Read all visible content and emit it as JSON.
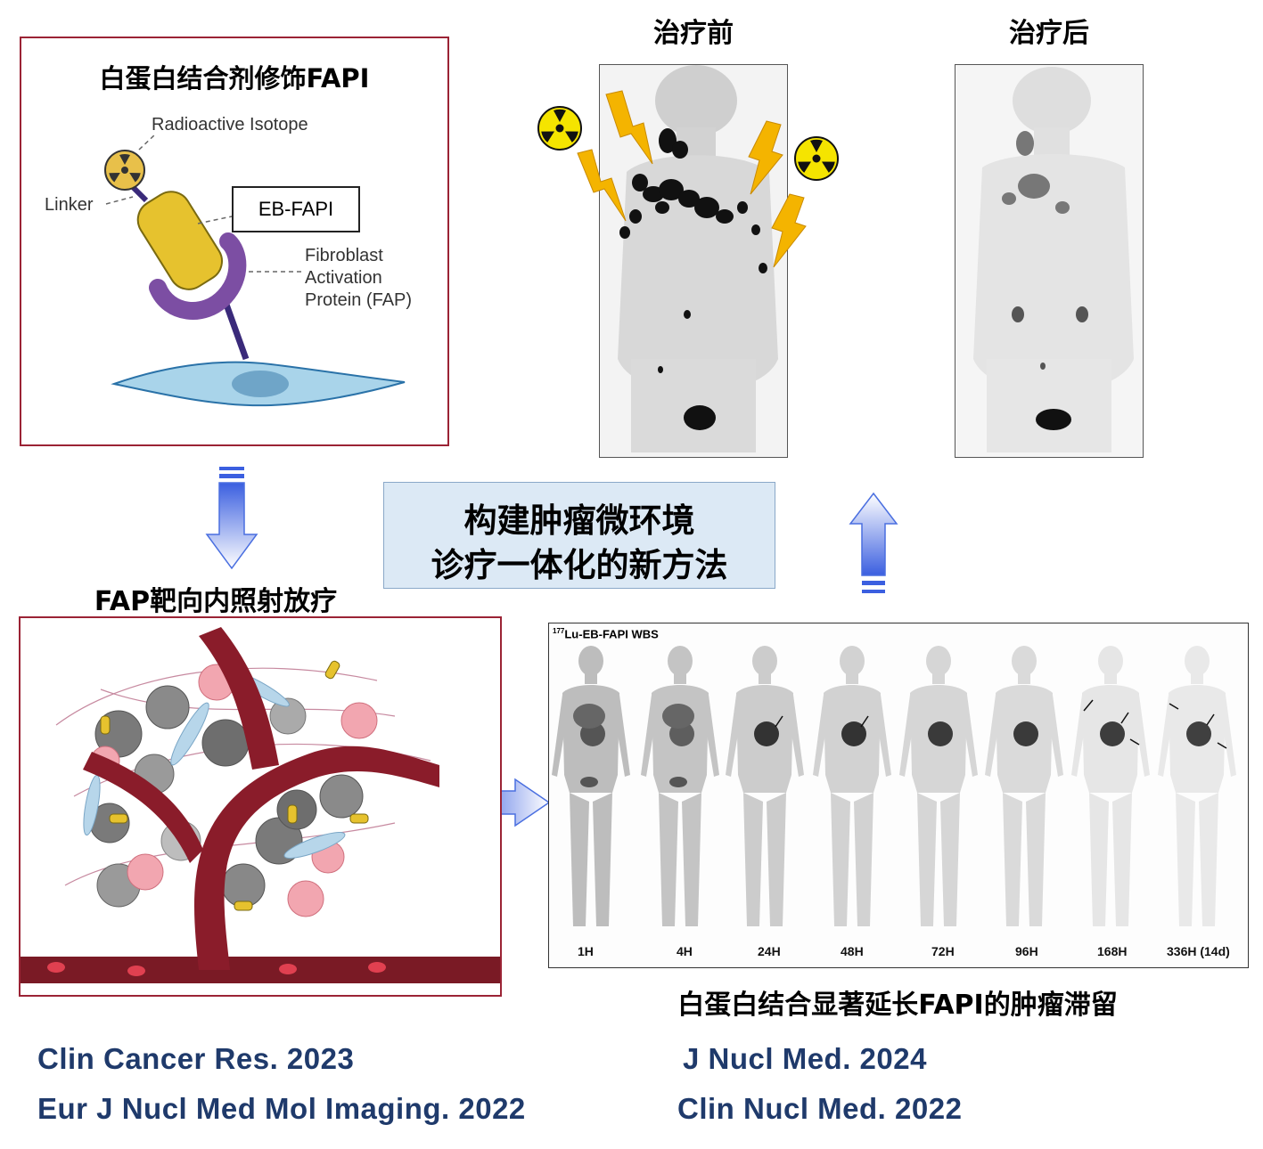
{
  "top_left_panel": {
    "title": "白蛋白结合剂修饰FAPI",
    "label_isotope": "Radioactive Isotope",
    "label_linker": "Linker",
    "label_ebfapi": "EB-FAPI",
    "label_fap_1": "Fibroblast",
    "label_fap_2": "Activation",
    "label_fap_3": "Protein (FAP)"
  },
  "scans_top": {
    "before_title": "治疗前",
    "after_title": "治疗后"
  },
  "center_box": {
    "line1": "构建肿瘤微环境",
    "line2": "诊疗一体化的新方法"
  },
  "bottom_left_panel": {
    "title": "FAP靶向内照射放疗"
  },
  "wbs_panel": {
    "header_sup": "177",
    "header_text": "Lu-EB-FAPI WBS",
    "timepoints": [
      "1H",
      "4H",
      "24H",
      "48H",
      "72H",
      "96H",
      "168H",
      "336H (14d)"
    ],
    "caption": "白蛋白结合显著延长FAPI的肿瘤滞留"
  },
  "references": {
    "left_1": "Clin Cancer Res. 2023",
    "left_2": "Eur J Nucl Med Mol Imaging.  2022",
    "right_1": "J Nucl Med. 2024",
    "right_2": "Clin Nucl Med. 2022"
  },
  "colors": {
    "frame": "#9b2335",
    "reference_text": "#1f3a6b",
    "arrow_blue": "#4a6fe0",
    "info_box_bg": "#dce9f5",
    "bolt": "#f4b400",
    "radiation_yellow": "#f5e400"
  }
}
